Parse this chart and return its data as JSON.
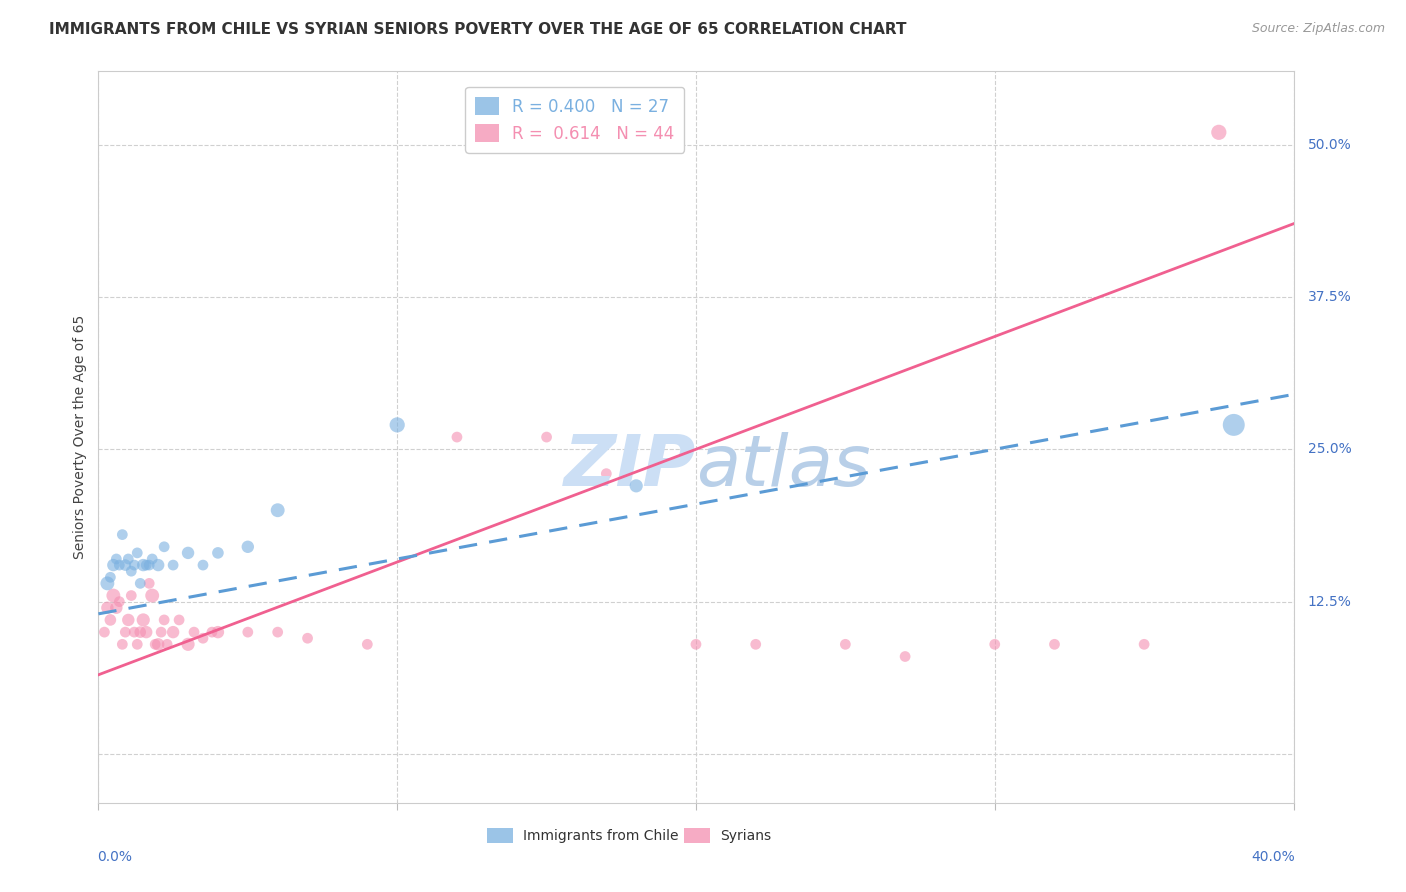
{
  "title": "IMMIGRANTS FROM CHILE VS SYRIAN SENIORS POVERTY OVER THE AGE OF 65 CORRELATION CHART",
  "source": "Source: ZipAtlas.com",
  "ylabel": "Seniors Poverty Over the Age of 65",
  "ytick_values": [
    0.0,
    0.125,
    0.25,
    0.375,
    0.5
  ],
  "ytick_labels": [
    "",
    "12.5%",
    "25.0%",
    "37.5%",
    "50.0%"
  ],
  "xlim": [
    0.0,
    0.4
  ],
  "ylim": [
    -0.04,
    0.56
  ],
  "legend_entries": [
    {
      "label_r": "R = 0.400",
      "label_n": "N = 27",
      "color": "#7ab0e0"
    },
    {
      "label_r": "R =  0.614",
      "label_n": "N = 44",
      "color": "#f48fb1"
    }
  ],
  "chile_scatter": {
    "x": [
      0.003,
      0.004,
      0.005,
      0.006,
      0.007,
      0.008,
      0.009,
      0.01,
      0.011,
      0.012,
      0.013,
      0.014,
      0.015,
      0.016,
      0.017,
      0.018,
      0.02,
      0.022,
      0.025,
      0.03,
      0.035,
      0.04,
      0.05,
      0.06,
      0.1,
      0.18,
      0.38
    ],
    "y": [
      0.14,
      0.145,
      0.155,
      0.16,
      0.155,
      0.18,
      0.155,
      0.16,
      0.15,
      0.155,
      0.165,
      0.14,
      0.155,
      0.155,
      0.155,
      0.16,
      0.155,
      0.17,
      0.155,
      0.165,
      0.155,
      0.165,
      0.17,
      0.2,
      0.27,
      0.22,
      0.27
    ],
    "sizes": [
      100,
      60,
      80,
      60,
      60,
      60,
      70,
      60,
      60,
      60,
      60,
      60,
      80,
      60,
      60,
      60,
      80,
      60,
      60,
      80,
      60,
      70,
      80,
      100,
      120,
      90,
      250
    ],
    "color": "#7ab0e0",
    "alpha": 0.6
  },
  "syrian_scatter": {
    "x": [
      0.002,
      0.003,
      0.004,
      0.005,
      0.006,
      0.007,
      0.008,
      0.009,
      0.01,
      0.011,
      0.012,
      0.013,
      0.014,
      0.015,
      0.016,
      0.017,
      0.018,
      0.019,
      0.02,
      0.021,
      0.022,
      0.023,
      0.025,
      0.027,
      0.03,
      0.032,
      0.035,
      0.038,
      0.04,
      0.05,
      0.06,
      0.07,
      0.09,
      0.12,
      0.15,
      0.17,
      0.2,
      0.22,
      0.25,
      0.27,
      0.3,
      0.32,
      0.35,
      0.375
    ],
    "y": [
      0.1,
      0.12,
      0.11,
      0.13,
      0.12,
      0.125,
      0.09,
      0.1,
      0.11,
      0.13,
      0.1,
      0.09,
      0.1,
      0.11,
      0.1,
      0.14,
      0.13,
      0.09,
      0.09,
      0.1,
      0.11,
      0.09,
      0.1,
      0.11,
      0.09,
      0.1,
      0.095,
      0.1,
      0.1,
      0.1,
      0.1,
      0.095,
      0.09,
      0.26,
      0.26,
      0.23,
      0.09,
      0.09,
      0.09,
      0.08,
      0.09,
      0.09,
      0.09,
      0.51
    ],
    "sizes": [
      60,
      80,
      70,
      100,
      80,
      60,
      60,
      60,
      80,
      60,
      60,
      60,
      70,
      90,
      80,
      60,
      100,
      60,
      80,
      60,
      60,
      60,
      80,
      60,
      90,
      60,
      60,
      60,
      80,
      60,
      60,
      60,
      60,
      60,
      60,
      60,
      60,
      60,
      60,
      60,
      60,
      60,
      60,
      120
    ],
    "color": "#f48fb1",
    "alpha": 0.6
  },
  "chile_line": {
    "x": [
      0.0,
      0.4
    ],
    "y": [
      0.115,
      0.295
    ],
    "color": "#5b9bd5",
    "linewidth": 2.2,
    "linestyle": "--"
  },
  "syrian_line": {
    "x": [
      0.0,
      0.4
    ],
    "y": [
      0.065,
      0.435
    ],
    "color": "#f06090",
    "linewidth": 2.0,
    "linestyle": "-"
  },
  "grid_color": "#d0d0d0",
  "background_color": "#ffffff",
  "title_fontsize": 11,
  "axis_label_color": "#4472c4",
  "watermark_color": "#ccdff5",
  "watermark_fontsize": 52
}
